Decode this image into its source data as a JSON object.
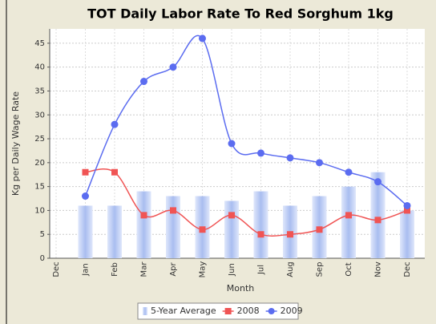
{
  "chart_data": {
    "type": "bar-line",
    "title": "TOT Daily Labor Rate To Red Sorghum 1kg",
    "x_label": "Month",
    "y_label": "Kg per Daily Wage Rate",
    "categories": [
      "Dec",
      "Jan",
      "Feb",
      "Mar",
      "Apr",
      "May",
      "Jun",
      "Jul",
      "Aug",
      "Sep",
      "Oct",
      "Nov",
      "Dec"
    ],
    "series": [
      {
        "name": "5-Year Average",
        "type": "bar",
        "color": "#b4c6f2",
        "values": [
          null,
          11,
          11,
          14,
          13,
          13,
          12,
          14,
          11,
          13,
          15,
          18,
          10
        ]
      },
      {
        "name": "2008",
        "type": "line",
        "marker": "square",
        "color": "#f05454",
        "values": [
          null,
          18,
          18,
          9,
          10,
          6,
          9,
          5,
          5,
          6,
          9,
          8,
          10
        ]
      },
      {
        "name": "2009",
        "type": "line",
        "marker": "circle",
        "color": "#5b6cf0",
        "values": [
          null,
          13,
          28,
          37,
          40,
          46,
          24,
          22,
          21,
          20,
          18,
          16,
          11
        ]
      }
    ],
    "ylim": [
      0,
      48
    ],
    "yticks": [
      0,
      5,
      10,
      15,
      20,
      25,
      30,
      35,
      40,
      45
    ],
    "grid": true,
    "legend": "bottom"
  }
}
